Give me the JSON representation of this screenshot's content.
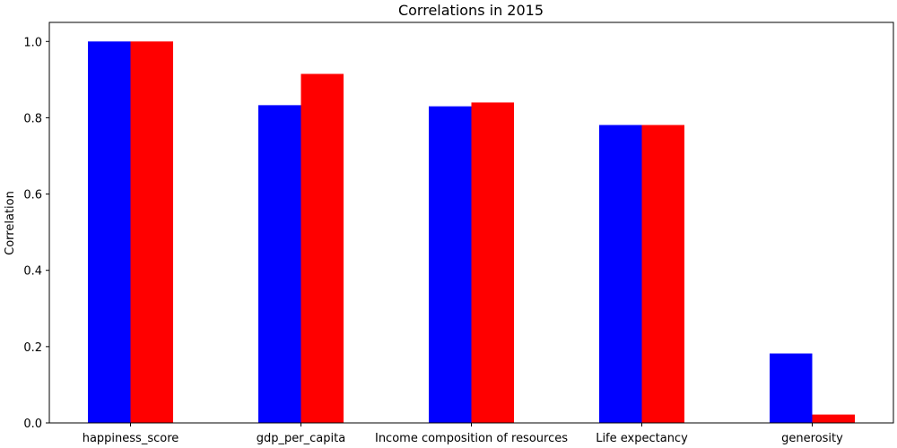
{
  "chart_data": {
    "type": "bar",
    "title": "Correlations in 2015",
    "xlabel": "",
    "ylabel": "Correlation",
    "categories": [
      "happiness_score",
      "gdp_per_capita",
      "Income composition of resources",
      "Life expectancy",
      "generosity"
    ],
    "series": [
      {
        "color": "#0000ff",
        "values": [
          1.0,
          0.833,
          0.83,
          0.781,
          0.182
        ]
      },
      {
        "color": "#ff0000",
        "values": [
          1.0,
          0.915,
          0.84,
          0.781,
          0.022
        ]
      }
    ],
    "yticks": [
      "0.0",
      "0.2",
      "0.4",
      "0.6",
      "0.8",
      "1.0"
    ],
    "ylim": [
      0,
      1.05
    ],
    "grid": false,
    "legend": "none"
  }
}
